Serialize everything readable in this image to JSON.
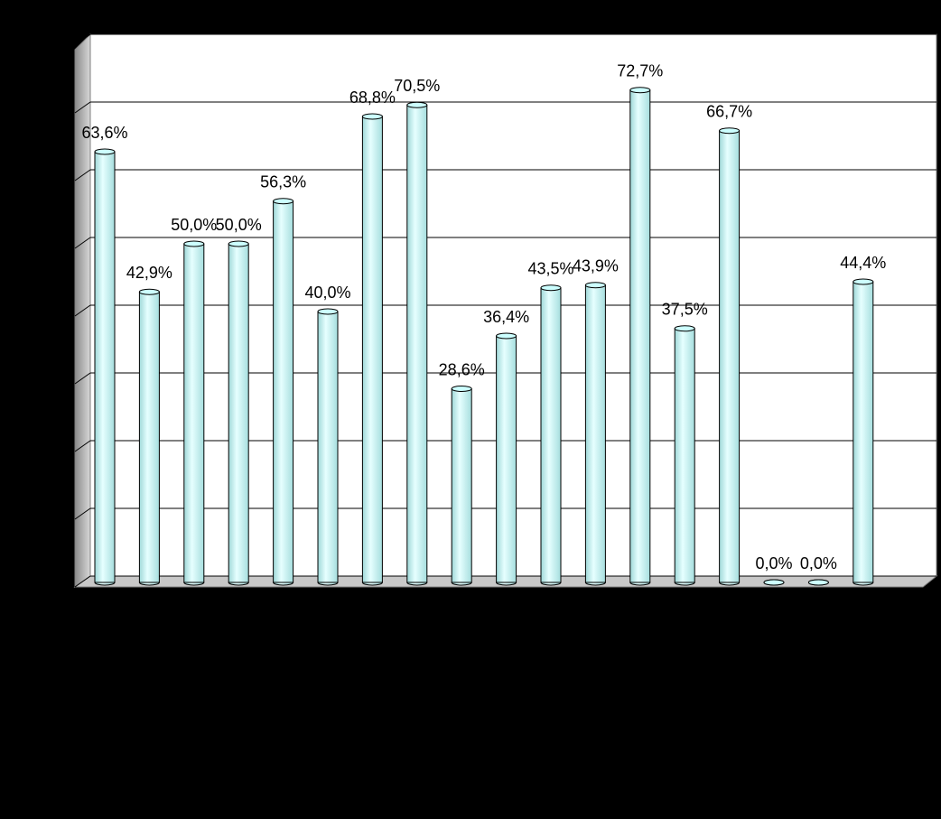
{
  "chart_data": {
    "type": "bar",
    "categories": [
      null,
      null,
      null,
      null,
      null,
      null,
      null,
      null,
      null,
      null,
      null,
      null,
      null,
      null,
      null,
      null,
      null,
      null
    ],
    "values": [
      63.6,
      42.9,
      50.0,
      50.0,
      56.3,
      40.0,
      68.8,
      70.5,
      28.6,
      36.4,
      43.5,
      43.9,
      72.7,
      37.5,
      66.7,
      0.0,
      0.0,
      44.4
    ],
    "value_labels": [
      "63,6%",
      "42,9%",
      "50,0%",
      "50,0%",
      "56,3%",
      "40,0%",
      "68,8%",
      "70,5%",
      "28,6%",
      "36,4%",
      "43,5%",
      "43,9%",
      "72,7%",
      "37,5%",
      "66,7%",
      "0,0%",
      "0,0%",
      "44,4%"
    ],
    "color": "#ccffff",
    "ylim": [
      0,
      80
    ],
    "yticks": [
      0,
      10,
      20,
      30,
      40,
      50,
      60,
      70,
      80
    ],
    "grid": true
  }
}
